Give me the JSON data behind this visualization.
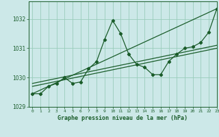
{
  "title": "Graphe pression niveau de la mer (hPa)",
  "bg_color": "#cce8e8",
  "grid_color": "#99ccbb",
  "line_color": "#1a5c2a",
  "xlim": [
    -0.5,
    23
  ],
  "ylim": [
    1029.0,
    1032.6
  ],
  "yticks": [
    1029,
    1030,
    1031,
    1032
  ],
  "xticks": [
    0,
    1,
    2,
    3,
    4,
    5,
    6,
    7,
    8,
    9,
    10,
    11,
    12,
    13,
    14,
    15,
    16,
    17,
    18,
    19,
    20,
    21,
    22,
    23
  ],
  "series1_x": [
    0,
    1,
    2,
    3,
    4,
    5,
    6,
    7,
    8,
    9,
    10,
    11,
    12,
    13,
    14,
    15,
    16,
    17,
    18,
    19,
    20,
    21,
    22,
    23
  ],
  "series1_y": [
    1029.45,
    1029.45,
    1029.7,
    1029.8,
    1030.0,
    1029.8,
    1029.85,
    1030.3,
    1030.55,
    1031.3,
    1031.95,
    1031.5,
    1030.8,
    1030.45,
    1030.35,
    1030.1,
    1030.1,
    1030.55,
    1030.8,
    1031.0,
    1031.05,
    1031.2,
    1031.55,
    1032.35
  ],
  "series2_x": [
    0,
    23
  ],
  "series2_y": [
    1029.45,
    1032.35
  ],
  "series3_x": [
    0,
    23
  ],
  "series3_y": [
    1029.7,
    1031.0
  ],
  "series4_x": [
    0,
    23
  ],
  "series4_y": [
    1029.8,
    1031.1
  ]
}
